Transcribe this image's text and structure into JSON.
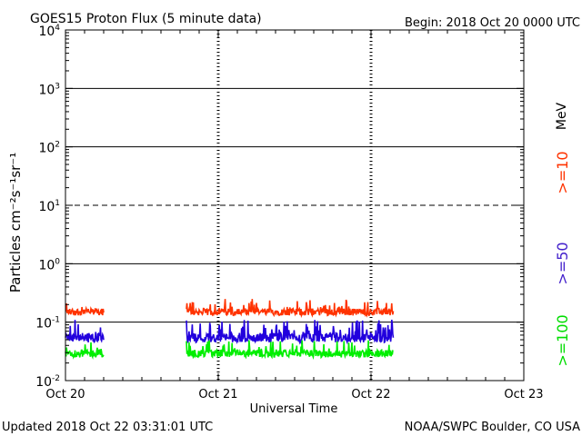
{
  "header": {
    "title": "GOES15 Proton Flux (5 minute data)",
    "begin": "Begin: 2018 Oct 20 0000 UTC"
  },
  "footer": {
    "updated": "Updated 2018 Oct 22 03:31:01 UTC",
    "credit": "NOAA/SWPC Boulder, CO USA"
  },
  "chart_data": {
    "type": "line",
    "title": "GOES15 Proton Flux (5 minute data)",
    "xlabel": "Universal Time",
    "ylabel": "Particles cm⁻²s⁻¹sr⁻¹",
    "yscale": "log",
    "ylim": [
      0.01,
      10000
    ],
    "xlim": [
      "2018-10-20 00:00",
      "2018-10-23 00:00"
    ],
    "x_ticks": [
      "Oct 20",
      "Oct 21",
      "Oct 22",
      "Oct 23"
    ],
    "y_ticks": [
      {
        "base": "10",
        "exp": "-2"
      },
      {
        "base": "10",
        "exp": "-1"
      },
      {
        "base": "10",
        "exp": "0"
      },
      {
        "base": "10",
        "exp": "1"
      },
      {
        "base": "10",
        "exp": "2"
      },
      {
        "base": "10",
        "exp": "3"
      },
      {
        "base": "10",
        "exp": "4"
      }
    ],
    "threshold_line": 10,
    "grid": "horizontal at decades, vertical dotted at day boundaries",
    "units_label": "MeV",
    "series": [
      {
        "name": ">=10",
        "color": "#ff3300",
        "approx_range": [
          0.13,
          0.4
        ]
      },
      {
        "name": ">=50",
        "color": "#2200dd",
        "approx_range": [
          0.045,
          0.2
        ]
      },
      {
        "name": ">=100",
        "color": "#00ee00",
        "approx_range": [
          0.025,
          0.08
        ]
      }
    ],
    "data_gap": [
      "2018-10-20 06:00",
      "2018-10-20 19:00"
    ],
    "data_end": "2018-10-22 03:30"
  }
}
